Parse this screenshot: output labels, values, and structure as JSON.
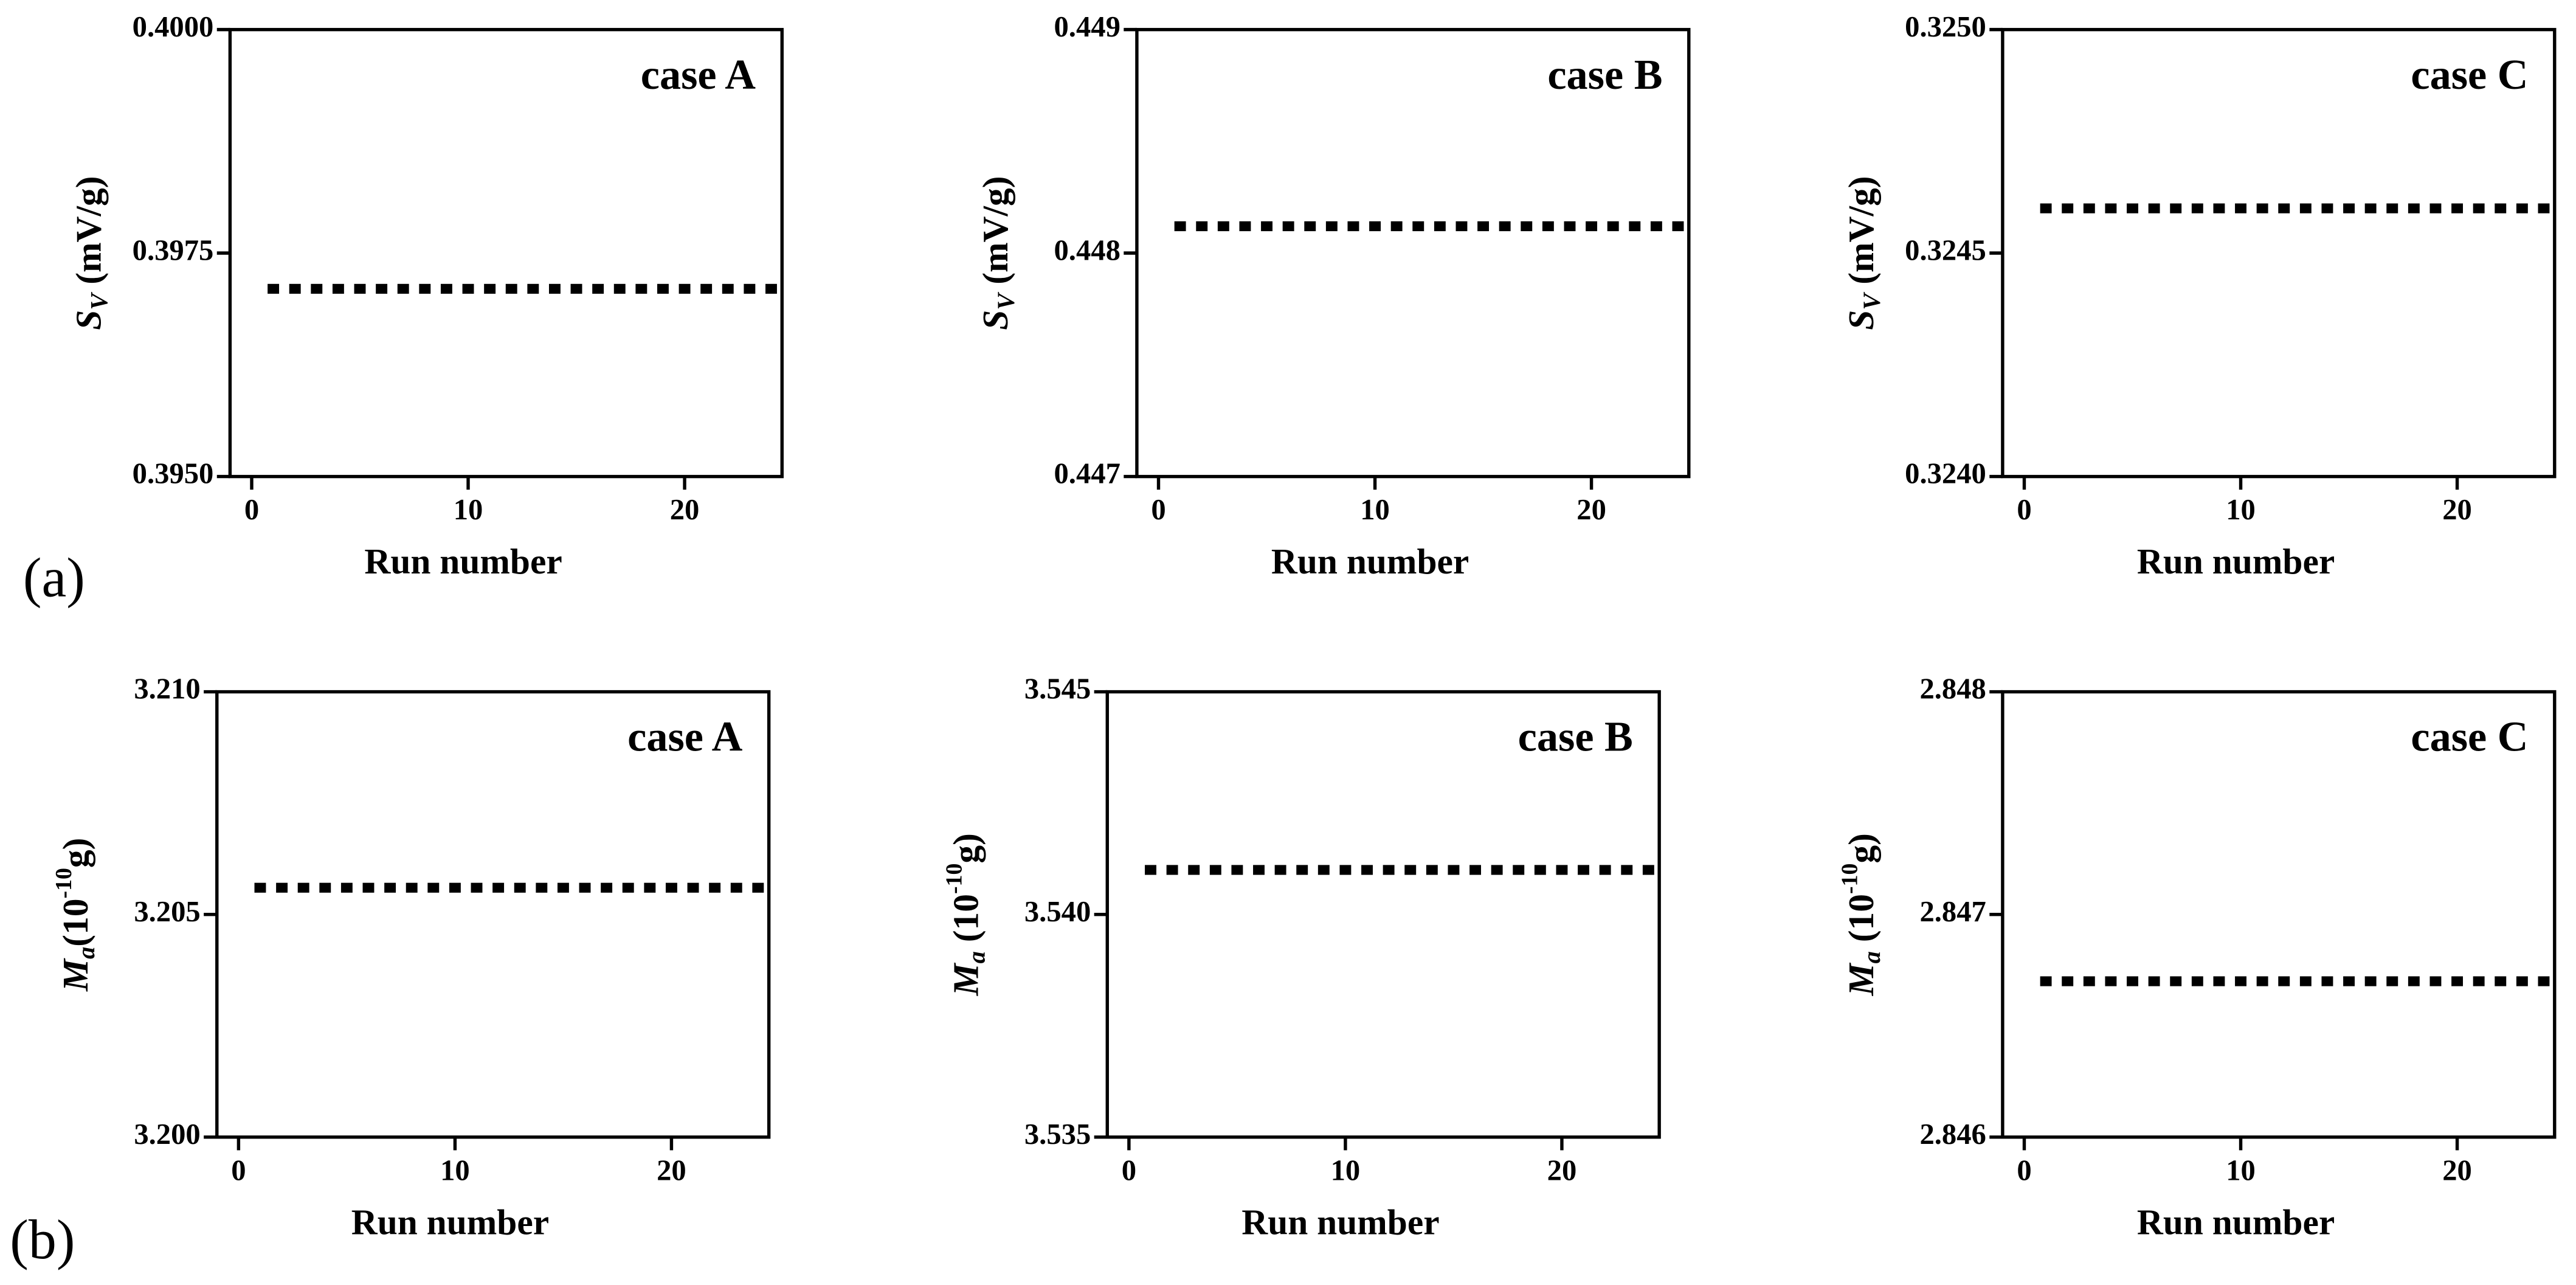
{
  "panel_labels": [
    "(a)",
    "(b)"
  ],
  "chart_data": [
    {
      "type": "scatter",
      "annotation": "case A",
      "xlabel": "Run number",
      "ylabel": [
        {
          "text": "S",
          "style": "italic"
        },
        {
          "text": "V",
          "style": "italic-sub"
        },
        {
          "text": " (mV/g)",
          "style": "normal"
        }
      ],
      "x": [
        1,
        2,
        3,
        4,
        5,
        6,
        7,
        8,
        9,
        10,
        11,
        12,
        13,
        14,
        15,
        16,
        17,
        18,
        19,
        20,
        21,
        22,
        23,
        24
      ],
      "values": [
        0.3971,
        0.3971,
        0.3971,
        0.3971,
        0.3971,
        0.3971,
        0.3971,
        0.3971,
        0.3971,
        0.3971,
        0.3971,
        0.3971,
        0.3971,
        0.3971,
        0.3971,
        0.3971,
        0.3971,
        0.3971,
        0.3971,
        0.3971,
        0.3971,
        0.3971,
        0.3971,
        0.3971
      ],
      "color": "#000000",
      "xlim": [
        -1,
        24.5
      ],
      "xticks": [
        0,
        10,
        20
      ],
      "ylim": [
        0.395,
        0.4
      ],
      "yticks": [
        {
          "value": 0.395,
          "label": "0.3950"
        },
        {
          "value": 0.3975,
          "label": "0.3975"
        },
        {
          "value": 0.4,
          "label": "0.4000"
        }
      ]
    },
    {
      "type": "scatter",
      "annotation": "case B",
      "xlabel": "Run number",
      "ylabel": [
        {
          "text": "S",
          "style": "italic"
        },
        {
          "text": "V",
          "style": "italic-sub"
        },
        {
          "text": " (mV/g)",
          "style": "normal"
        }
      ],
      "x": [
        1,
        2,
        3,
        4,
        5,
        6,
        7,
        8,
        9,
        10,
        11,
        12,
        13,
        14,
        15,
        16,
        17,
        18,
        19,
        20,
        21,
        22,
        23,
        24
      ],
      "values": [
        0.44812,
        0.44812,
        0.44812,
        0.44812,
        0.44812,
        0.44812,
        0.44812,
        0.44812,
        0.44812,
        0.44812,
        0.44812,
        0.44812,
        0.44812,
        0.44812,
        0.44812,
        0.44812,
        0.44812,
        0.44812,
        0.44812,
        0.44812,
        0.44812,
        0.44812,
        0.44812,
        0.44812
      ],
      "color": "#000000",
      "xlim": [
        -1,
        24.5
      ],
      "xticks": [
        0,
        10,
        20
      ],
      "ylim": [
        0.447,
        0.449
      ],
      "yticks": [
        0.447,
        0.448,
        0.449
      ]
    },
    {
      "type": "scatter",
      "annotation": "case C",
      "xlabel": "Run number",
      "ylabel": [
        {
          "text": "S",
          "style": "italic"
        },
        {
          "text": "V",
          "style": "italic-sub"
        },
        {
          "text": " (mV/g)",
          "style": "normal"
        }
      ],
      "x": [
        1,
        2,
        3,
        4,
        5,
        6,
        7,
        8,
        9,
        10,
        11,
        12,
        13,
        14,
        15,
        16,
        17,
        18,
        19,
        20,
        21,
        22,
        23,
        24
      ],
      "values": [
        0.3246,
        0.3246,
        0.3246,
        0.3246,
        0.3246,
        0.3246,
        0.3246,
        0.3246,
        0.3246,
        0.3246,
        0.3246,
        0.3246,
        0.3246,
        0.3246,
        0.3246,
        0.3246,
        0.3246,
        0.3246,
        0.3246,
        0.3246,
        0.3246,
        0.3246,
        0.3246,
        0.3246
      ],
      "color": "#000000",
      "xlim": [
        -1,
        24.5
      ],
      "xticks": [
        0,
        10,
        20
      ],
      "ylim": [
        0.324,
        0.325
      ],
      "yticks": [
        {
          "value": 0.324,
          "label": "0.3240"
        },
        {
          "value": 0.3245,
          "label": "0.3245"
        },
        {
          "value": 0.325,
          "label": "0.3250"
        }
      ]
    },
    {
      "type": "scatter",
      "annotation": "case A",
      "xlabel": "Run number",
      "ylabel": [
        {
          "text": "M",
          "style": "italic"
        },
        {
          "text": "a",
          "style": "italic-sub"
        },
        {
          "text": "(10",
          "style": "normal"
        },
        {
          "text": "-10",
          "style": "sup"
        },
        {
          "text": "g)",
          "style": "normal"
        }
      ],
      "x": [
        1,
        2,
        3,
        4,
        5,
        6,
        7,
        8,
        9,
        10,
        11,
        12,
        13,
        14,
        15,
        16,
        17,
        18,
        19,
        20,
        21,
        22,
        23,
        24
      ],
      "values": [
        3.2056,
        3.2056,
        3.2056,
        3.2056,
        3.2056,
        3.2056,
        3.2056,
        3.2056,
        3.2056,
        3.2056,
        3.2056,
        3.2056,
        3.2056,
        3.2056,
        3.2056,
        3.2056,
        3.2056,
        3.2056,
        3.2056,
        3.2056,
        3.2056,
        3.2056,
        3.2056,
        3.2056
      ],
      "color": "#000000",
      "xlim": [
        -1,
        24.5
      ],
      "xticks": [
        0,
        10,
        20
      ],
      "ylim": [
        3.2,
        3.21
      ],
      "yticks": [
        {
          "value": 3.2,
          "label": "3.200"
        },
        3.205,
        {
          "value": 3.21,
          "label": "3.210"
        }
      ]
    },
    {
      "type": "scatter",
      "annotation": "case B",
      "xlabel": "Run number",
      "ylabel": [
        {
          "text": "M",
          "style": "italic"
        },
        {
          "text": "a",
          "style": "italic-sub"
        },
        {
          "text": " (10",
          "style": "normal"
        },
        {
          "text": "-10",
          "style": "sup"
        },
        {
          "text": "g)",
          "style": "normal"
        }
      ],
      "x": [
        1,
        2,
        3,
        4,
        5,
        6,
        7,
        8,
        9,
        10,
        11,
        12,
        13,
        14,
        15,
        16,
        17,
        18,
        19,
        20,
        21,
        22,
        23,
        24
      ],
      "values": [
        3.541,
        3.541,
        3.541,
        3.541,
        3.541,
        3.541,
        3.541,
        3.541,
        3.541,
        3.541,
        3.541,
        3.541,
        3.541,
        3.541,
        3.541,
        3.541,
        3.541,
        3.541,
        3.541,
        3.541,
        3.541,
        3.541,
        3.541,
        3.541
      ],
      "color": "#000000",
      "xlim": [
        -1,
        24.5
      ],
      "xticks": [
        0,
        10,
        20
      ],
      "ylim": [
        3.535,
        3.545
      ],
      "yticks": [
        3.535,
        {
          "value": 3.54,
          "label": "3.540"
        },
        3.545
      ]
    },
    {
      "type": "scatter",
      "annotation": "case C",
      "xlabel": "Run number",
      "ylabel": [
        {
          "text": "M",
          "style": "italic"
        },
        {
          "text": "a",
          "style": "italic-sub"
        },
        {
          "text": " (10",
          "style": "normal"
        },
        {
          "text": "-10",
          "style": "sup"
        },
        {
          "text": "g)",
          "style": "normal"
        }
      ],
      "x": [
        1,
        2,
        3,
        4,
        5,
        6,
        7,
        8,
        9,
        10,
        11,
        12,
        13,
        14,
        15,
        16,
        17,
        18,
        19,
        20,
        21,
        22,
        23,
        24
      ],
      "values": [
        2.8467,
        2.8467,
        2.8467,
        2.8467,
        2.8467,
        2.8467,
        2.8467,
        2.8467,
        2.8467,
        2.8467,
        2.8467,
        2.8467,
        2.8467,
        2.8467,
        2.8467,
        2.8467,
        2.8467,
        2.8467,
        2.8467,
        2.8467,
        2.8467,
        2.8467,
        2.8467,
        2.8467
      ],
      "color": "#000000",
      "xlim": [
        -1,
        24.5
      ],
      "xticks": [
        0,
        10,
        20
      ],
      "ylim": [
        2.846,
        2.848
      ],
      "yticks": [
        2.846,
        2.847,
        2.848
      ]
    }
  ]
}
